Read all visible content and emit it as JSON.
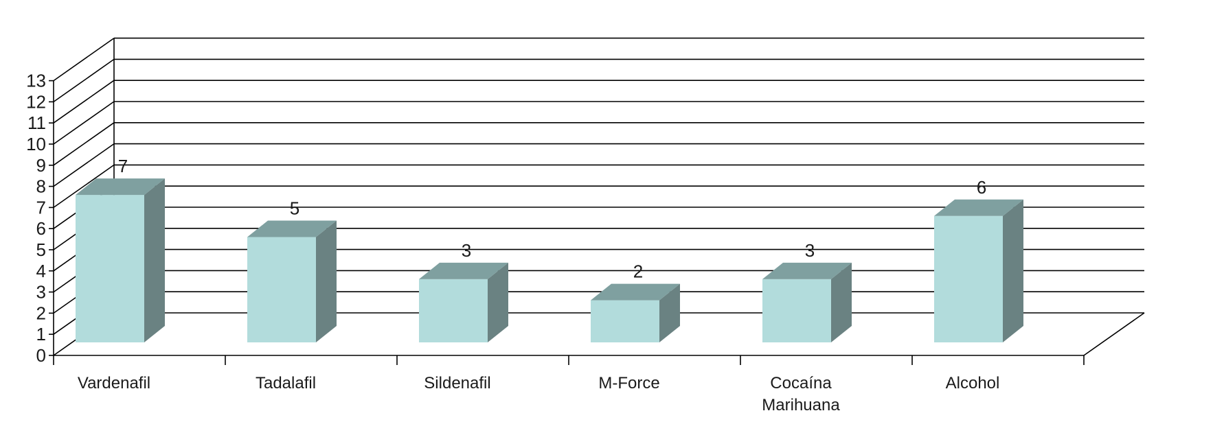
{
  "chart_data": {
    "type": "bar",
    "style": "3d",
    "categories": [
      "Vardenafil",
      "Tadalafil",
      "Sildenafil",
      "M-Force",
      "Cocaína Marihuana",
      "Alcohol"
    ],
    "category_label_lines": [
      [
        "Vardenafil"
      ],
      [
        "Tadalafil"
      ],
      [
        "Sildenafil"
      ],
      [
        "M-Force"
      ],
      [
        "Cocaína",
        "Marihuana"
      ],
      [
        "Alcohol"
      ]
    ],
    "values": [
      7,
      5,
      3,
      2,
      3,
      6
    ],
    "data_labels": [
      "7",
      "5",
      "3",
      "2",
      "3",
      "6"
    ],
    "y_ticks": [
      "0",
      "1",
      "2",
      "3",
      "4",
      "5",
      "6",
      "7",
      "8",
      "9",
      "10",
      "11",
      "12",
      "13"
    ],
    "ylim": [
      0,
      13
    ],
    "grid": true,
    "legend": "none",
    "colors": {
      "bar_front": "#b2dcdc",
      "bar_top": "#7fa0a0",
      "bar_side": "#6a8282",
      "grid": "#000000",
      "text": "#1a1a1a"
    }
  }
}
